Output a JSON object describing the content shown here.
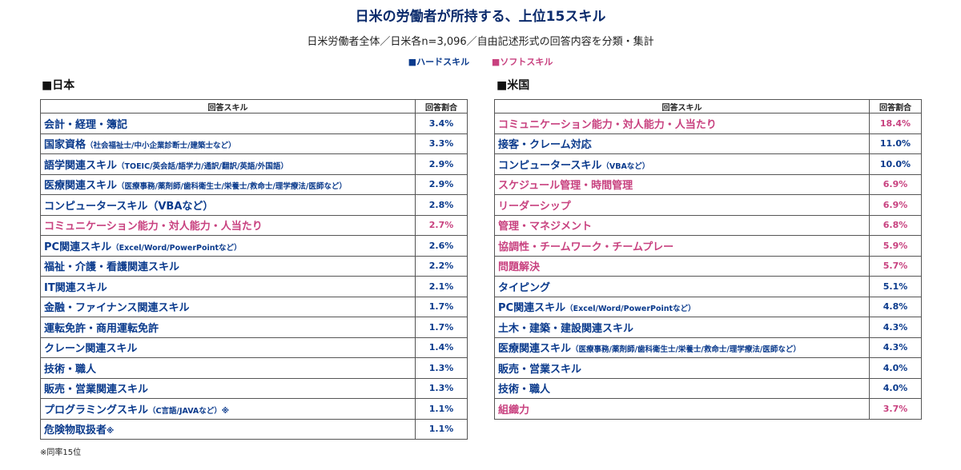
{
  "title": "日米の労働者が所持する、上位15スキル",
  "subtitle": "日米労働者全体／日米各n=3,096／自由記述形式の回答内容を分類・集計",
  "legend": {
    "hard": "■ハードスキル",
    "soft": "■ソフトスキル"
  },
  "colors": {
    "hard": "#0a3a8c",
    "soft": "#c8417f",
    "title": "#0a2a6b"
  },
  "footnote": "※同率15位",
  "chart_data": [
    {
      "type": "table",
      "title": "■日本",
      "headers": [
        "回答スキル",
        "回答割合"
      ],
      "rows": [
        {
          "skill": "会計・経理・簿記",
          "note": "",
          "value": "3.4%",
          "kind": "hard"
        },
        {
          "skill": "国家資格",
          "note": "（社会福祉士/中小企業診断士/建築士など）",
          "value": "3.3%",
          "kind": "hard"
        },
        {
          "skill": "語学関連スキル",
          "note": "（TOEIC/英会話/語学力/通訳/翻訳/英語/外国語）",
          "value": "2.9%",
          "kind": "hard"
        },
        {
          "skill": "医療関連スキル",
          "note": "（医療事務/薬剤師/歯科衛生士/栄養士/救命士/理学療法/医師など）",
          "value": "2.9%",
          "kind": "hard"
        },
        {
          "skill": "コンピュータースキル（VBAなど）",
          "note": "",
          "value": "2.8%",
          "kind": "hard"
        },
        {
          "skill": "コミュニケーション能力・対人能力・人当たり",
          "note": "",
          "value": "2.7%",
          "kind": "soft"
        },
        {
          "skill": "PC関連スキル",
          "note": "（Excel/Word/PowerPointなど）",
          "value": "2.6%",
          "kind": "hard"
        },
        {
          "skill": "福祉・介護・看護関連スキル",
          "note": "",
          "value": "2.2%",
          "kind": "hard"
        },
        {
          "skill": "IT関連スキル",
          "note": "",
          "value": "2.1%",
          "kind": "hard"
        },
        {
          "skill": "金融・ファイナンス関連スキル",
          "note": "",
          "value": "1.7%",
          "kind": "hard"
        },
        {
          "skill": "運転免許・商用運転免許",
          "note": "",
          "value": "1.7%",
          "kind": "hard"
        },
        {
          "skill": "クレーン関連スキル",
          "note": "",
          "value": "1.4%",
          "kind": "hard"
        },
        {
          "skill": "技術・職人",
          "note": "",
          "value": "1.3%",
          "kind": "hard"
        },
        {
          "skill": "販売・営業関連スキル",
          "note": "",
          "value": "1.3%",
          "kind": "hard"
        },
        {
          "skill": "プログラミングスキル",
          "note": "（C言語/JAVAなど）※",
          "value": "1.1%",
          "kind": "hard"
        },
        {
          "skill": "危険物取扱者",
          "note": "※",
          "value": "1.1%",
          "kind": "hard"
        }
      ]
    },
    {
      "type": "table",
      "title": "■米国",
      "headers": [
        "回答スキル",
        "回答割合"
      ],
      "rows": [
        {
          "skill": "コミュニケーション能力・対人能力・人当たり",
          "note": "",
          "value": "18.4%",
          "kind": "soft"
        },
        {
          "skill": "接客・クレーム対応",
          "note": "",
          "value": "11.0%",
          "kind": "hard"
        },
        {
          "skill": "コンピュータースキル",
          "note": "（VBAなど）",
          "value": "10.0%",
          "kind": "hard"
        },
        {
          "skill": "スケジュール管理・時間管理",
          "note": "",
          "value": "6.9%",
          "kind": "soft"
        },
        {
          "skill": "リーダーシップ",
          "note": "",
          "value": "6.9%",
          "kind": "soft"
        },
        {
          "skill": "管理・マネジメント",
          "note": "",
          "value": "6.8%",
          "kind": "soft"
        },
        {
          "skill": "協調性・チームワーク・チームプレー",
          "note": "",
          "value": "5.9%",
          "kind": "soft"
        },
        {
          "skill": "問題解決",
          "note": "",
          "value": "5.7%",
          "kind": "soft"
        },
        {
          "skill": "タイピング",
          "note": "",
          "value": "5.1%",
          "kind": "hard"
        },
        {
          "skill": "PC関連スキル",
          "note": "（Excel/Word/PowerPointなど）",
          "value": "4.8%",
          "kind": "hard"
        },
        {
          "skill": "土木・建築・建設関連スキル",
          "note": "",
          "value": "4.3%",
          "kind": "hard"
        },
        {
          "skill": "医療関連スキル",
          "note": "（医療事務/薬剤師/歯科衛生士/栄養士/救命士/理学療法/医師など）",
          "value": "4.3%",
          "kind": "hard"
        },
        {
          "skill": "販売・営業スキル",
          "note": "",
          "value": "4.0%",
          "kind": "hard"
        },
        {
          "skill": "技術・職人",
          "note": "",
          "value": "4.0%",
          "kind": "hard"
        },
        {
          "skill": "組織力",
          "note": "",
          "value": "3.7%",
          "kind": "soft"
        }
      ]
    }
  ]
}
